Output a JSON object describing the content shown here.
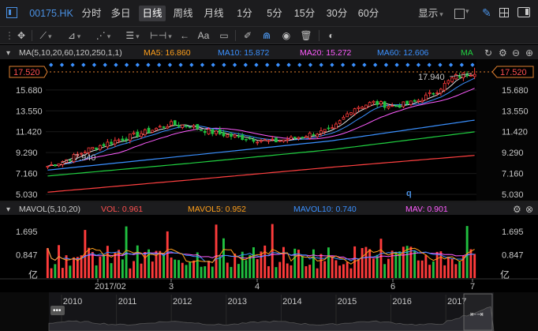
{
  "header": {
    "code": "00175.HK",
    "tabs": [
      "分时",
      "多日",
      "日线",
      "周线",
      "月线",
      "1分",
      "5分",
      "15分",
      "30分",
      "60分"
    ],
    "selected_tab": "日线",
    "display_label": "显示"
  },
  "toolbar": {
    "text_tool_label": "Aa"
  },
  "colors": {
    "up": "#ff3b3b",
    "down": "#20c040",
    "ma5": "#ff9f1a",
    "ma10": "#3a90ff",
    "ma20": "#ff5cff",
    "ma60": "#3a90ff",
    "ma120": "#20d040",
    "ma250": "#ff4040"
  },
  "chart_data": [
    {
      "type": "candlestick",
      "indicator_label": "MA(5,10,20,60,120,250,1,1)",
      "ma_readout": [
        {
          "name": "MA5",
          "value": "16.860"
        },
        {
          "name": "MA10",
          "value": "15.872"
        },
        {
          "name": "MA20",
          "value": "15.272"
        },
        {
          "name": "MA60",
          "value": "12.606"
        },
        {
          "name": "MA",
          "value": ""
        }
      ],
      "ylim": [
        5.03,
        17.52
      ],
      "y_ticks": [
        "17.520",
        "15.680",
        "13.550",
        "11.420",
        "9.290",
        "7.160",
        "5.030"
      ],
      "current_price": "17.520",
      "annotation_high": "17.940",
      "annotation_low": "7.940",
      "x_ticks": [
        "2017/02",
        "3",
        "4",
        "6",
        "7"
      ],
      "series": [
        {
          "name": "MA60",
          "values": [
            7.5,
            9.0,
            10.5,
            12.6
          ]
        },
        {
          "name": "MA120",
          "values": [
            6.9,
            8.2,
            9.6,
            11.4
          ]
        },
        {
          "name": "MA250",
          "values": [
            5.25,
            6.5,
            7.8,
            9.0
          ]
        }
      ],
      "approx_close_path": [
        7.9,
        8.6,
        9.6,
        10.3,
        10.9,
        11.5,
        12.2,
        12.0,
        11.4,
        11.0,
        10.7,
        10.4,
        10.7,
        11.2,
        11.6,
        13.8,
        14.4,
        14.0,
        14.4,
        15.4,
        17.0,
        17.5
      ]
    },
    {
      "type": "bar",
      "indicator_label": "MAVOL(5,10,20)",
      "readout": [
        {
          "name": "VOL",
          "value": "0.961"
        },
        {
          "name": "MAVOL5",
          "value": "0.952"
        },
        {
          "name": "MAVOL10",
          "value": "0.740"
        },
        {
          "name": "MAV",
          "value": "0.901"
        }
      ],
      "ylim": [
        0,
        2.3
      ],
      "y_ticks": [
        "1.695",
        "0.847"
      ],
      "unit": "亿"
    }
  ],
  "overview": {
    "years": [
      "2010",
      "2011",
      "2012",
      "2013",
      "2014",
      "2015",
      "2016",
      "2017"
    ]
  }
}
